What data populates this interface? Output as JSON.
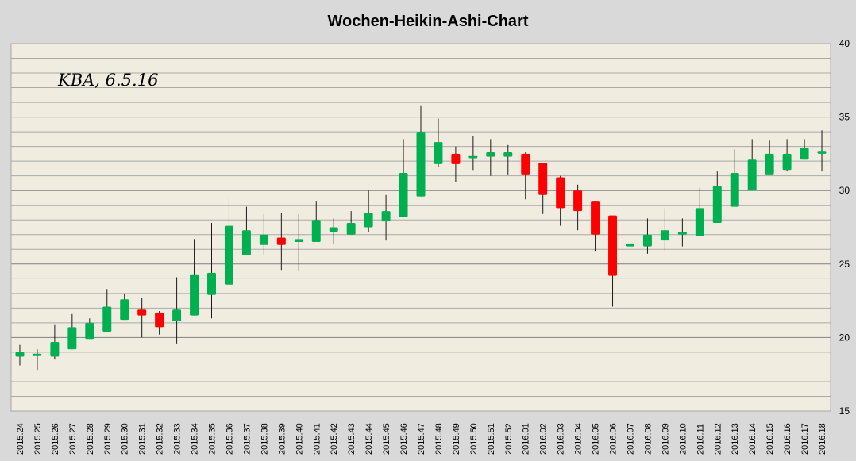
{
  "chart_data": {
    "type": "candlestick",
    "title": "Wochen-Heikin-Ashi-Chart",
    "annotation": "KBA, 6.5.16",
    "ylim": [
      15,
      40
    ],
    "y_ticks": [
      15,
      20,
      25,
      30,
      35,
      40
    ],
    "y_axis_position": "right",
    "grid": true,
    "colors": {
      "up": "#00b050",
      "down": "#ff0000",
      "plot_background": "#f0ede0",
      "grid": "#808080",
      "frame": "#d9d9d9"
    },
    "categories": [
      "2015.24",
      "2015.25",
      "2015.26",
      "2015.27",
      "2015.28",
      "2015.29",
      "2015.30",
      "2015.31",
      "2015.32",
      "2015.33",
      "2015.34",
      "2015.35",
      "2015.36",
      "2015.37",
      "2015.38",
      "2015.39",
      "2015.40",
      "2015.41",
      "2015.42",
      "2015.43",
      "2015.44",
      "2015.45",
      "2015.46",
      "2015.47",
      "2015.48",
      "2015.49",
      "2015.50",
      "2015.51",
      "2015.52",
      "2016.01",
      "2016.02",
      "2016.03",
      "2016.04",
      "2016.05",
      "2016.06",
      "2016.07",
      "2016.08",
      "2016.09",
      "2016.10",
      "2016.11",
      "2016.12",
      "2016.13",
      "2016.14",
      "2016.15",
      "2016.16",
      "2016.17",
      "2016.18"
    ],
    "open": [
      18.7,
      18.8,
      18.7,
      19.2,
      19.9,
      20.4,
      21.2,
      21.9,
      21.7,
      21.1,
      21.5,
      22.9,
      23.6,
      25.6,
      26.3,
      26.8,
      26.5,
      26.5,
      27.2,
      27.0,
      27.5,
      27.9,
      28.2,
      29.6,
      31.8,
      32.5,
      32.2,
      32.3,
      32.3,
      32.5,
      31.9,
      30.9,
      30.0,
      29.3,
      28.3,
      26.2,
      26.2,
      26.6,
      27.0,
      26.9,
      27.8,
      28.9,
      30.0,
      31.1,
      31.4,
      32.1,
      32.5
    ],
    "close": [
      19.0,
      18.9,
      19.7,
      20.7,
      21.0,
      22.1,
      22.6,
      21.5,
      20.7,
      21.9,
      24.3,
      24.4,
      27.6,
      27.3,
      27.0,
      26.3,
      26.7,
      28.0,
      27.5,
      27.8,
      28.5,
      28.6,
      31.2,
      34.0,
      33.3,
      31.8,
      32.4,
      32.6,
      32.6,
      31.1,
      29.7,
      28.8,
      28.6,
      27.0,
      24.2,
      26.4,
      27.0,
      27.3,
      27.2,
      28.8,
      30.3,
      31.2,
      32.1,
      32.5,
      32.5,
      32.9,
      32.7
    ],
    "high": [
      19.5,
      19.2,
      20.9,
      21.6,
      21.3,
      23.3,
      23.0,
      22.7,
      21.8,
      24.1,
      26.7,
      27.8,
      29.5,
      28.9,
      28.4,
      28.5,
      28.4,
      29.3,
      28.1,
      28.6,
      30.0,
      29.7,
      33.5,
      35.8,
      34.9,
      33.0,
      33.7,
      33.5,
      33.1,
      32.6,
      31.8,
      31.0,
      30.4,
      29.3,
      28.3,
      28.6,
      28.1,
      28.8,
      28.1,
      30.2,
      31.3,
      32.8,
      33.5,
      33.4,
      33.5,
      33.5,
      34.1
    ],
    "low": [
      18.1,
      17.8,
      18.5,
      19.2,
      19.9,
      20.4,
      21.2,
      20.0,
      20.2,
      19.6,
      21.5,
      21.3,
      23.6,
      25.6,
      25.6,
      24.6,
      24.5,
      26.5,
      26.4,
      27.0,
      27.2,
      26.6,
      28.2,
      29.6,
      31.6,
      30.6,
      31.4,
      31.0,
      31.1,
      29.4,
      28.4,
      27.6,
      27.3,
      25.9,
      22.1,
      24.5,
      25.7,
      25.9,
      26.2,
      26.9,
      27.8,
      28.9,
      30.0,
      31.1,
      31.3,
      32.1,
      31.3
    ]
  }
}
